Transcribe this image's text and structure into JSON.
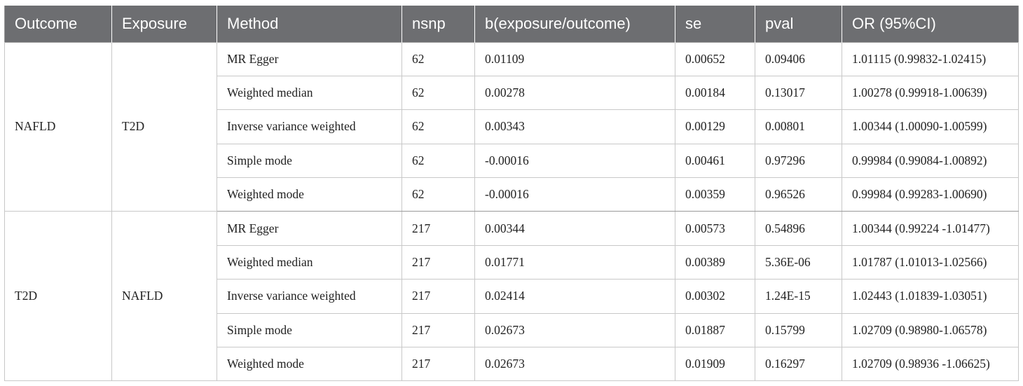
{
  "headers": [
    "Outcome",
    "Exposure",
    "Method",
    "nsnp",
    "b(exposure/outcome)",
    "se",
    "pval",
    "OR (95%CI)"
  ],
  "groups": [
    {
      "outcome": "NAFLD",
      "exposure": "T2D",
      "rows": [
        {
          "method": "MR Egger",
          "nsnp": "62",
          "b": "0.01109",
          "se": "0.00652",
          "pval": "0.09406",
          "or": "1.01115 (0.99832-1.02415)"
        },
        {
          "method": "Weighted median",
          "nsnp": "62",
          "b": "0.00278",
          "se": "0.00184",
          "pval": "0.13017",
          "or": "1.00278 (0.99918-1.00639)"
        },
        {
          "method": "Inverse variance weighted",
          "nsnp": "62",
          "b": "0.00343",
          "se": "0.00129",
          "pval": "0.00801",
          "or": "1.00344 (1.00090-1.00599)"
        },
        {
          "method": "Simple mode",
          "nsnp": "62",
          "b": "-0.00016",
          "se": "0.00461",
          "pval": "0.97296",
          "or": "0.99984 (0.99084-1.00892)"
        },
        {
          "method": "Weighted mode",
          "nsnp": "62",
          "b": "-0.00016",
          "se": "0.00359",
          "pval": "0.96526",
          "or": "0.99984 (0.99283-1.00690)"
        }
      ]
    },
    {
      "outcome": "T2D",
      "exposure": "NAFLD",
      "rows": [
        {
          "method": "MR Egger",
          "nsnp": "217",
          "b": "0.00344",
          "se": "0.00573",
          "pval": "0.54896",
          "or": "1.00344 (0.99224 -1.01477)"
        },
        {
          "method": "Weighted median",
          "nsnp": "217",
          "b": "0.01771",
          "se": "0.00389",
          "pval": "5.36E-06",
          "or": "1.01787 (1.01013-1.02566)"
        },
        {
          "method": "Inverse variance weighted",
          "nsnp": "217",
          "b": "0.02414",
          "se": "0.00302",
          "pval": "1.24E-15",
          "or": "1.02443 (1.01839-1.03051)"
        },
        {
          "method": "Simple mode",
          "nsnp": "217",
          "b": "0.02673",
          "se": "0.01887",
          "pval": "0.15799",
          "or": "1.02709 (0.98980-1.06578)"
        },
        {
          "method": "Weighted mode",
          "nsnp": "217",
          "b": "0.02673",
          "se": "0.01909",
          "pval": "0.16297",
          "or": "1.02709 (0.98936 -1.06625)"
        }
      ]
    }
  ]
}
